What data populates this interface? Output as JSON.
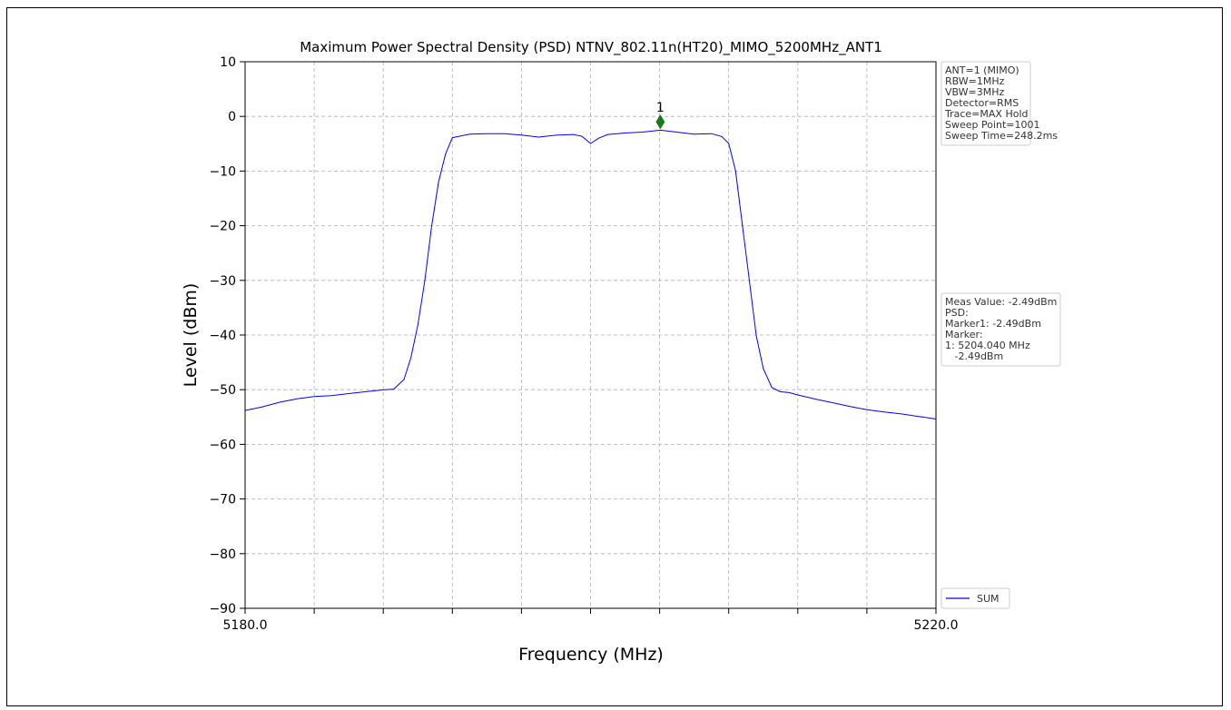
{
  "chart_data": {
    "type": "line",
    "title": "Maximum Power Spectral Density (PSD) NTNV_802.11n(HT20)_MIMO_5200MHz_ANT1",
    "xlabel": "Frequency (MHz)",
    "ylabel": "Level (dBm)",
    "xlim": [
      5180.0,
      5220.0
    ],
    "ylim": [
      -90,
      10
    ],
    "x_ticks": [
      5180,
      5184,
      5188,
      5192,
      5196,
      5200,
      5204,
      5208,
      5212,
      5216,
      5220
    ],
    "x_tick_labels": [
      "5180.0",
      "5220.0"
    ],
    "y_ticks": [
      10,
      0,
      -10,
      -20,
      -30,
      -40,
      -50,
      -60,
      -70,
      -80,
      -90
    ],
    "y_tick_labels": [
      "10",
      "0",
      "−10",
      "−20",
      "−30",
      "−40",
      "−50",
      "−60",
      "−70",
      "−80",
      "−90"
    ],
    "grid": true,
    "series": [
      {
        "name": "SUM",
        "color": "#0000ff",
        "x": [
          5180.0,
          5181.0,
          5182.0,
          5183.0,
          5184.0,
          5185.0,
          5186.0,
          5187.0,
          5188.0,
          5188.6,
          5189.2,
          5189.6,
          5190.0,
          5190.4,
          5190.8,
          5191.2,
          5191.6,
          5192.0,
          5193.0,
          5194.0,
          5195.0,
          5196.0,
          5197.0,
          5198.0,
          5199.0,
          5199.5,
          5200.0,
          5200.5,
          5201.0,
          5202.0,
          5203.0,
          5204.04,
          5205.0,
          5206.0,
          5207.0,
          5207.6,
          5208.0,
          5208.4,
          5208.8,
          5209.2,
          5209.6,
          5210.0,
          5210.5,
          5211.0,
          5211.5,
          5212.0,
          5213.0,
          5214.0,
          5215.0,
          5216.0,
          5217.0,
          5218.0,
          5219.0,
          5220.0
        ],
        "y": [
          -53.8,
          -53.2,
          -52.4,
          -51.8,
          -51.4,
          -51.2,
          -50.8,
          -50.4,
          -50.0,
          -49.8,
          -48.0,
          -44.0,
          -38.0,
          -30.0,
          -20.0,
          -12.0,
          -7.0,
          -4.0,
          -3.4,
          -3.3,
          -3.3,
          -3.5,
          -3.8,
          -3.4,
          -3.2,
          -3.5,
          -4.8,
          -3.8,
          -3.2,
          -3.0,
          -2.9,
          -2.6,
          -3.0,
          -3.4,
          -3.3,
          -3.8,
          -5.0,
          -10.0,
          -20.0,
          -30.0,
          -40.0,
          -46.0,
          -49.5,
          -50.3,
          -50.5,
          -51.0,
          -51.8,
          -52.5,
          -53.2,
          -53.8,
          -54.2,
          -54.5,
          -54.9,
          -55.3
        ]
      }
    ],
    "marker": {
      "label": "1",
      "x": 5204.04,
      "y": -1.0,
      "color": "#1a7a1a"
    },
    "legend": {
      "position": "right-bottom",
      "entries": [
        "SUM"
      ]
    },
    "info_box_top": [
      "ANT=1 (MIMO)",
      "RBW=1MHz",
      "VBW=3MHz",
      "Detector=RMS",
      "Trace=MAX Hold",
      "Sweep Point=1001",
      "Sweep Time=248.2ms"
    ],
    "info_box_meas": [
      "Meas Value: -2.49dBm",
      "PSD:",
      "Marker1: -2.49dBm",
      "Marker:",
      "1: 5204.040 MHz",
      "   -2.49dBm"
    ]
  }
}
